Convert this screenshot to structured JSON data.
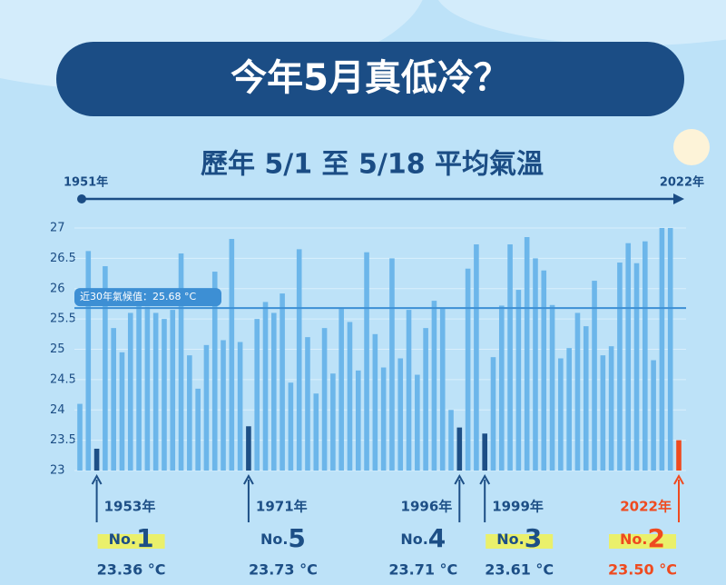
{
  "chart_data": {
    "type": "bar",
    "title": "今年5月真低冷？",
    "subtitle": "歷年 5/1 至 5/18 平均氣溫",
    "period_start": "1951年",
    "period_end": "2022年",
    "values": [
      24.1,
      26.62,
      23.36,
      26.37,
      25.35,
      24.95,
      25.6,
      25.75,
      25.7,
      25.6,
      25.5,
      25.65,
      26.58,
      24.9,
      24.35,
      25.07,
      26.28,
      25.15,
      26.82,
      25.12,
      23.73,
      25.5,
      25.78,
      25.6,
      25.92,
      24.45,
      26.65,
      25.2,
      24.27,
      25.35,
      24.6,
      25.68,
      25.45,
      24.65,
      26.6,
      25.25,
      24.7,
      26.5,
      24.85,
      25.65,
      24.58,
      25.35,
      25.8,
      25.68,
      24.0,
      23.71,
      26.33,
      26.73,
      23.61,
      24.87,
      25.72,
      26.73,
      25.98,
      26.85,
      26.5,
      26.3,
      25.73,
      24.85,
      25.02,
      25.6,
      25.38,
      26.13,
      24.9,
      25.05,
      26.43,
      26.75,
      26.42,
      26.78,
      24.82,
      27.0,
      27.0,
      23.5
    ],
    "colors": [
      "#6cb6ea",
      "#6cb6ea",
      "#1d4f86",
      "#6cb6ea",
      "#6cb6ea",
      "#6cb6ea",
      "#6cb6ea",
      "#6cb6ea",
      "#6cb6ea",
      "#6cb6ea",
      "#6cb6ea",
      "#6cb6ea",
      "#6cb6ea",
      "#6cb6ea",
      "#6cb6ea",
      "#6cb6ea",
      "#6cb6ea",
      "#6cb6ea",
      "#6cb6ea",
      "#6cb6ea",
      "#1d4f86",
      "#6cb6ea",
      "#6cb6ea",
      "#6cb6ea",
      "#6cb6ea",
      "#6cb6ea",
      "#6cb6ea",
      "#6cb6ea",
      "#6cb6ea",
      "#6cb6ea",
      "#6cb6ea",
      "#6cb6ea",
      "#6cb6ea",
      "#6cb6ea",
      "#6cb6ea",
      "#6cb6ea",
      "#6cb6ea",
      "#6cb6ea",
      "#6cb6ea",
      "#6cb6ea",
      "#6cb6ea",
      "#6cb6ea",
      "#6cb6ea",
      "#6cb6ea",
      "#6cb6ea",
      "#1d4f86",
      "#6cb6ea",
      "#6cb6ea",
      "#1d4f86",
      "#6cb6ea",
      "#6cb6ea",
      "#6cb6ea",
      "#6cb6ea",
      "#6cb6ea",
      "#6cb6ea",
      "#6cb6ea",
      "#6cb6ea",
      "#6cb6ea",
      "#6cb6ea",
      "#6cb6ea",
      "#6cb6ea",
      "#6cb6ea",
      "#6cb6ea",
      "#6cb6ea",
      "#6cb6ea",
      "#6cb6ea",
      "#6cb6ea",
      "#6cb6ea",
      "#6cb6ea",
      "#6cb6ea",
      "#6cb6ea",
      "#ef4a1f"
    ],
    "ylim": [
      23,
      27
    ],
    "yticks": [
      23,
      23.5,
      24,
      24.5,
      25,
      25.5,
      26,
      26.5,
      27
    ],
    "grid": true,
    "reference_line": {
      "value": 25.68,
      "label": "近30年氣候值：25.68 °C",
      "color": "#3d8fd4"
    },
    "annotations": [
      {
        "year": "1953年",
        "rank_prefix": "No.",
        "rank": 1,
        "value_label": "23.36 °C",
        "color": "#1d4f86",
        "highlight": true
      },
      {
        "year": "1971年",
        "rank_prefix": "No.",
        "rank": 5,
        "value_label": "23.73 °C",
        "color": "#1d4f86",
        "highlight": false
      },
      {
        "year": "1996年",
        "rank_prefix": "No.",
        "rank": 4,
        "value_label": "23.71 °C",
        "color": "#1d4f86",
        "highlight": false
      },
      {
        "year": "1999年",
        "rank_prefix": "No.",
        "rank": 3,
        "value_label": "23.61 °C",
        "color": "#1d4f86",
        "highlight": true
      },
      {
        "year": "2022年",
        "rank_prefix": "No.",
        "rank": 2,
        "value_label": "23.50 °C",
        "color": "#ef4a1f",
        "highlight": true
      }
    ]
  }
}
